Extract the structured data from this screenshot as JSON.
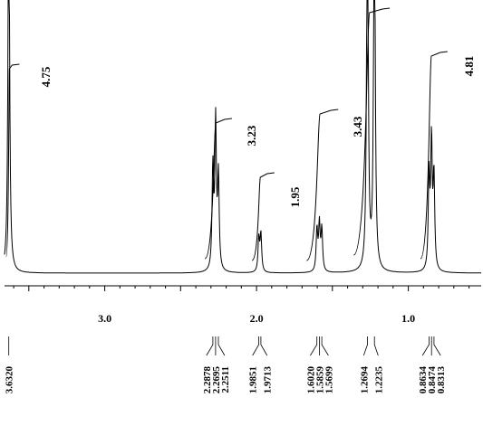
{
  "chart_data": {
    "type": "line",
    "title": "",
    "xlabel": "",
    "ylabel": "",
    "x_reversed": true,
    "xlim": [
      3.66,
      0.52
    ],
    "x_ticks": [
      {
        "value": 3.0,
        "label": "3.0"
      },
      {
        "value": 2.0,
        "label": "2.0"
      },
      {
        "value": 1.0,
        "label": "1.0"
      }
    ],
    "peak_groups": [
      {
        "labels": [
          "3.6320"
        ],
        "ppm": [
          3.632
        ]
      },
      {
        "labels": [
          "2.2878",
          "2.2695",
          "2.2511"
        ],
        "ppm": [
          2.2878,
          2.2695,
          2.2511
        ]
      },
      {
        "labels": [
          "1.9851",
          "1.9713"
        ],
        "ppm": [
          1.9851,
          1.9713
        ]
      },
      {
        "labels": [
          "1.6020",
          "1.5859",
          "1.5699"
        ],
        "ppm": [
          1.602,
          1.5859,
          1.5699
        ]
      },
      {
        "labels": [
          "1.2694",
          "1.2235"
        ],
        "ppm": [
          1.2694,
          1.2235
        ]
      },
      {
        "labels": [
          "0.8634",
          "0.8474",
          "0.8313"
        ],
        "ppm": [
          0.8634,
          0.8474,
          0.8313
        ]
      }
    ],
    "integrals": [
      {
        "label": "4.75",
        "range": [
          3.65,
          3.61
        ]
      },
      {
        "label": "3.23",
        "range": [
          2.34,
          2.21
        ]
      },
      {
        "label": "1.95",
        "range": [
          2.03,
          1.93
        ]
      },
      {
        "label": "3.43",
        "range": [
          1.67,
          1.51
        ]
      },
      {
        "label": "",
        "range": [
          1.36,
          1.17
        ]
      },
      {
        "label": "4.81",
        "range": [
          0.92,
          0.79
        ]
      }
    ],
    "peaks": [
      {
        "ppm": 3.632,
        "height": 1.0
      },
      {
        "ppm": 2.2878,
        "height": 0.24
      },
      {
        "ppm": 2.2695,
        "height": 0.35
      },
      {
        "ppm": 2.2511,
        "height": 0.22
      },
      {
        "ppm": 1.9851,
        "height": 0.08
      },
      {
        "ppm": 1.9713,
        "height": 0.09
      },
      {
        "ppm": 1.602,
        "height": 0.1
      },
      {
        "ppm": 1.5859,
        "height": 0.11
      },
      {
        "ppm": 1.5699,
        "height": 0.1
      },
      {
        "ppm": 1.2694,
        "height": 1.0
      },
      {
        "ppm": 1.2235,
        "height": 1.0
      },
      {
        "ppm": 0.8634,
        "height": 0.22
      },
      {
        "ppm": 0.8474,
        "height": 0.3
      },
      {
        "ppm": 0.8313,
        "height": 0.22
      }
    ],
    "grid": false,
    "legend": "none"
  }
}
